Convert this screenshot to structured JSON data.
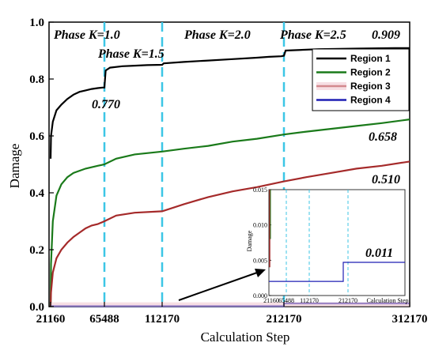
{
  "chart_data": {
    "type": "line",
    "xlabel": "Calculation Step",
    "ylabel": "Damage",
    "xlim": [
      21160,
      312170
    ],
    "ylim": [
      0,
      1.0
    ],
    "x_ticks": [
      21160,
      65488,
      112170,
      212170,
      312170
    ],
    "x_tick_labels": [
      "21160",
      "65488",
      "112170",
      "212170",
      "312170"
    ],
    "y_ticks": [
      0,
      0.2,
      0.4,
      0.6,
      0.8,
      1.0
    ],
    "y_tick_labels": [
      "0.0",
      "0.2",
      "0.4",
      "0.6",
      "0.8",
      "1.0"
    ],
    "phases": [
      {
        "label": "Phase K=1.0",
        "x": 65488
      },
      {
        "label": "Phase K=1.5",
        "x": 112170
      },
      {
        "label": "Phase K=2.0",
        "x": 212170
      },
      {
        "label": "Phase K=2.5",
        "x": 212170
      }
    ],
    "legend_position": "top-right",
    "series": [
      {
        "name": "Region 1",
        "color": "#000000",
        "end_label": "0.909",
        "x": [
          21160,
          21500,
          23000,
          26000,
          30000,
          35000,
          40000,
          45000,
          50000,
          55000,
          60000,
          64000,
          65488,
          66500,
          70000,
          80000,
          90000,
          100000,
          112170,
          113500,
          130000,
          150000,
          170000,
          190000,
          200000,
          210000,
          212170,
          213500,
          240000,
          270000,
          300000,
          312170
        ],
        "y": [
          0.52,
          0.6,
          0.65,
          0.69,
          0.71,
          0.73,
          0.745,
          0.755,
          0.76,
          0.765,
          0.768,
          0.77,
          0.77,
          0.83,
          0.84,
          0.845,
          0.847,
          0.849,
          0.85,
          0.855,
          0.86,
          0.865,
          0.87,
          0.875,
          0.878,
          0.88,
          0.882,
          0.9,
          0.905,
          0.907,
          0.909,
          0.909
        ]
      },
      {
        "name": "Region 2",
        "color": "#1a7a1a",
        "end_label": "0.658",
        "x": [
          21160,
          21500,
          23000,
          26000,
          30000,
          35000,
          40000,
          50000,
          60000,
          65488,
          75000,
          90000,
          112170,
          130000,
          150000,
          170000,
          190000,
          212170,
          230000,
          250000,
          270000,
          290000,
          312170
        ],
        "y": [
          0.0,
          0.15,
          0.3,
          0.39,
          0.43,
          0.455,
          0.47,
          0.485,
          0.495,
          0.5,
          0.52,
          0.535,
          0.545,
          0.555,
          0.565,
          0.58,
          0.59,
          0.605,
          0.615,
          0.625,
          0.635,
          0.645,
          0.658
        ]
      },
      {
        "name": "Region 3",
        "color": "#a52a2a",
        "end_label": "0.510",
        "x": [
          21160,
          21500,
          23000,
          26000,
          30000,
          35000,
          40000,
          45000,
          50000,
          55000,
          60000,
          65488,
          75000,
          90000,
          112170,
          130000,
          150000,
          170000,
          190000,
          212170,
          230000,
          250000,
          270000,
          290000,
          312170
        ],
        "y": [
          0.0,
          0.05,
          0.12,
          0.17,
          0.2,
          0.225,
          0.245,
          0.26,
          0.275,
          0.285,
          0.29,
          0.3,
          0.32,
          0.33,
          0.335,
          0.36,
          0.385,
          0.405,
          0.42,
          0.44,
          0.455,
          0.47,
          0.485,
          0.495,
          0.51
        ]
      },
      {
        "name": "Region 4",
        "color": "#1f1fb4",
        "end_label": "0.011",
        "x": [
          21160,
          212170,
          212171,
          312170
        ],
        "y": [
          0.002,
          0.002,
          0.011,
          0.011
        ]
      }
    ],
    "inset": {
      "xlabel": "Calculation Step",
      "ylabel": "Damage",
      "ylim": [
        0,
        0.015
      ],
      "y_ticks": [
        0,
        0.005,
        0.01,
        0.015
      ],
      "y_tick_labels": [
        "0.000",
        "0.005",
        "0.010",
        "0.015"
      ],
      "x_tick_labels": [
        "21160",
        "65488",
        "112170",
        "212170"
      ],
      "end_label": "0.011"
    }
  }
}
